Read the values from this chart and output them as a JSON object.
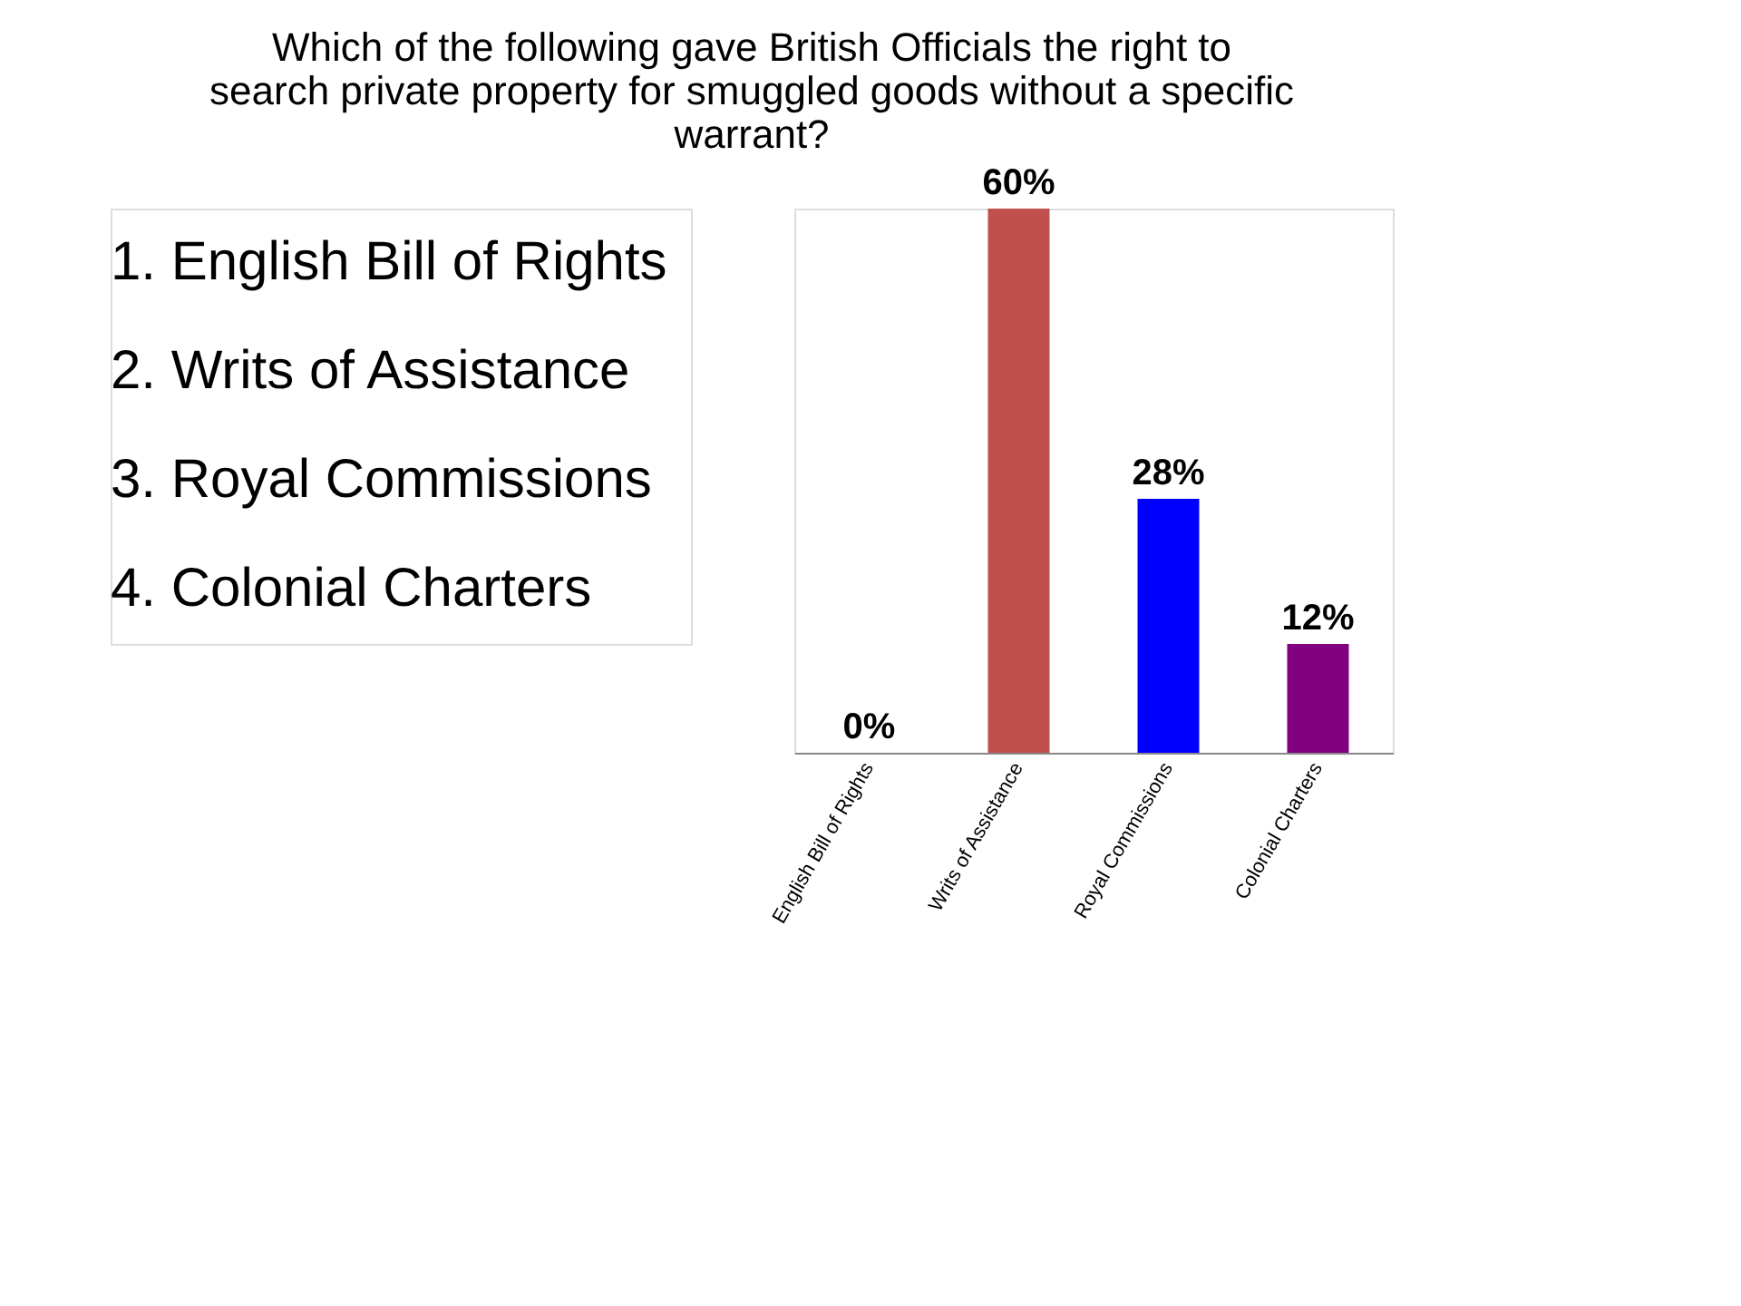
{
  "chart_data": {
    "type": "bar",
    "title": "Which of the following gave British Officials the right to search private property for smuggled goods without a specific warrant?",
    "annotations": [
      "1. English Bill of Rights",
      "2. Writs of Assistance",
      "3. Royal Commissions",
      "4. Colonial Charters"
    ],
    "categories": [
      "English Bill of Rights",
      "Writs of Assistance",
      "Royal Commissions",
      "Colonial Charters"
    ],
    "values": [
      0,
      60,
      28,
      12
    ],
    "colors": [
      "#4f81bd",
      "#c0504d",
      "#0000ff",
      "#800080"
    ],
    "value_labels": [
      "0%",
      "60%",
      "28%",
      "12%"
    ]
  }
}
